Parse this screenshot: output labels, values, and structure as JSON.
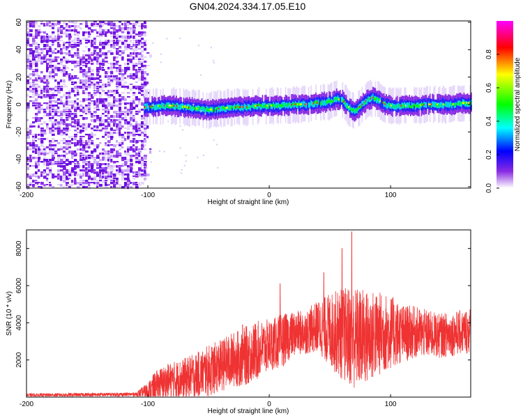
{
  "title": "GN04.2024.334.17.05.E10",
  "chart_data": [
    {
      "type": "heatmap",
      "xlabel": "Height of straight line (km)",
      "ylabel": "Frequency (Hz)",
      "xlim": [
        -200,
        166
      ],
      "ylim": [
        -61,
        61
      ],
      "xticks": [
        -200,
        -100,
        0,
        100
      ],
      "yticks": [
        -60,
        -40,
        -20,
        0,
        20,
        40,
        60
      ],
      "colorbar": {
        "label": "Normalized spectral amplitude",
        "range": [
          0,
          1
        ],
        "ticks": [
          "0.0",
          "0.2",
          "0.4",
          "0.6",
          "0.8"
        ],
        "colormap": [
          "#ffffff",
          "#8a2be2",
          "#0000ff",
          "#00ffff",
          "#00ff00",
          "#ffff00",
          "#ff0000",
          "#ff00ff"
        ]
      },
      "noise_region": {
        "x_start": -200,
        "x_end": -103
      },
      "ridge": {
        "x": [
          -103,
          -90,
          -80,
          -70,
          -60,
          -50,
          -40,
          -30,
          -20,
          -10,
          0,
          10,
          20,
          30,
          40,
          50,
          55,
          60,
          65,
          70,
          75,
          80,
          85,
          90,
          95,
          100,
          110,
          120,
          130,
          140,
          150,
          160,
          166
        ],
        "y": [
          -2,
          -1,
          -1,
          -2,
          -3,
          -4,
          -3,
          -2,
          -2,
          -1,
          -1,
          -1,
          0,
          0,
          1,
          2,
          4,
          3,
          -2,
          -5,
          -1,
          3,
          5,
          3,
          0,
          -1,
          -1,
          -1,
          0,
          0,
          0,
          1,
          1
        ]
      }
    },
    {
      "type": "line",
      "xlabel": "Height of straight line (km)",
      "ylabel": "SNR (10 * v/v)",
      "xlim": [
        -200,
        166
      ],
      "ylim": [
        0,
        9000
      ],
      "xticks": [
        -200,
        -100,
        0,
        100
      ],
      "yticks": [
        2000,
        4000,
        6000,
        8000
      ],
      "color": "#ef3333",
      "envelope": {
        "x": [
          -200,
          -110,
          -100,
          -95,
          -90,
          -80,
          -70,
          -60,
          -50,
          -40,
          -30,
          -20,
          -10,
          0,
          5,
          10,
          15,
          20,
          30,
          40,
          50,
          60,
          70,
          80,
          90,
          100,
          110,
          120,
          130,
          140,
          150,
          160,
          166
        ],
        "base": [
          100,
          150,
          300,
          500,
          700,
          900,
          1000,
          1200,
          1400,
          1700,
          2000,
          2200,
          2500,
          2800,
          2900,
          3000,
          3200,
          3400,
          3500,
          3800,
          3600,
          3400,
          3200,
          3200,
          3400,
          3500,
          3400,
          3500,
          3400,
          3300,
          3400,
          3500,
          3600
        ],
        "amp": [
          100,
          100,
          500,
          800,
          900,
          1000,
          1100,
          1200,
          1400,
          1400,
          1500,
          1600,
          1600,
          1400,
          1400,
          1500,
          1300,
          1200,
          1200,
          1400,
          2000,
          2500,
          2800,
          2600,
          2300,
          2000,
          1600,
          1400,
          1300,
          1200,
          1200,
          1200,
          1300
        ]
      },
      "peaks": [
        {
          "x": 68,
          "y": 8900
        },
        {
          "x": 60,
          "y": 8000
        },
        {
          "x": 9,
          "y": 6100
        },
        {
          "x": -22,
          "y": 3900
        },
        {
          "x": 45,
          "y": 6700
        }
      ]
    }
  ]
}
